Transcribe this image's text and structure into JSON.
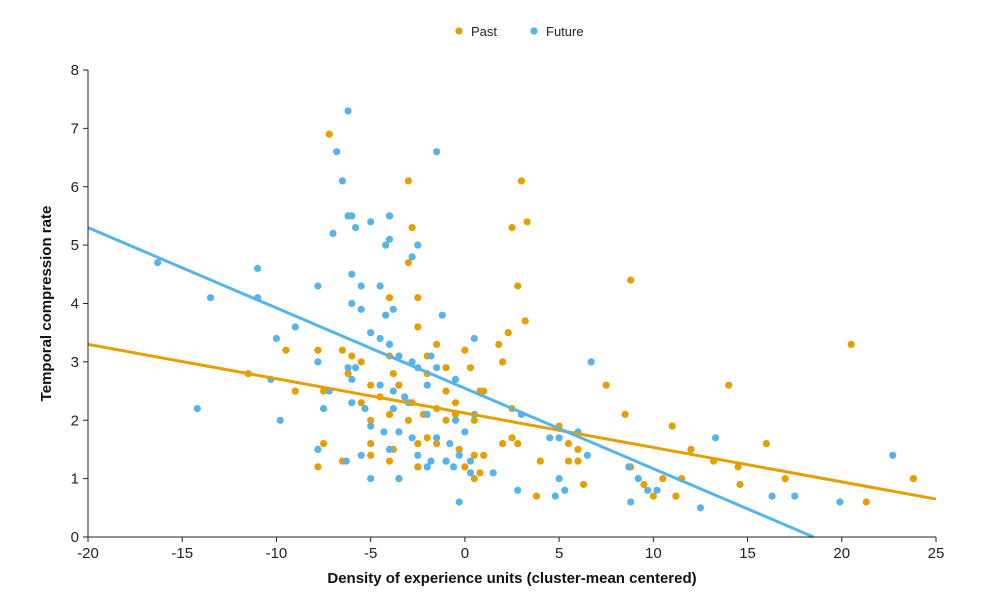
{
  "chart_data": {
    "type": "scatter",
    "title": "",
    "xlabel": "Density of experience units (cluster-mean centered)",
    "ylabel": "Temporal compression rate",
    "xlim": [
      -20,
      25
    ],
    "ylim": [
      0,
      8
    ],
    "xticks": [
      -20,
      -15,
      -10,
      -5,
      0,
      5,
      10,
      15,
      20,
      25
    ],
    "xtick_labels": [
      "-20",
      "-15",
      "-10",
      "-5",
      "0",
      "5",
      "10",
      "15",
      "20",
      "25"
    ],
    "yticks": [
      0,
      1,
      2,
      3,
      4,
      5,
      6,
      7,
      8
    ],
    "ytick_labels": [
      "0",
      "1",
      "2",
      "3",
      "4",
      "5",
      "6",
      "7",
      "8"
    ],
    "grid": false,
    "legend_position": "top-center",
    "series": [
      {
        "name": "Past",
        "color": "#E69F00",
        "trend": {
          "x": [
            -20,
            25
          ],
          "y": [
            3.3,
            0.65
          ]
        },
        "points": [
          [
            -7.2,
            6.9
          ],
          [
            -3.0,
            6.1
          ],
          [
            3.0,
            6.1
          ],
          [
            -4.0,
            5.5
          ],
          [
            3.3,
            5.4
          ],
          [
            2.5,
            5.3
          ],
          [
            -2.8,
            5.3
          ],
          [
            2.8,
            4.3
          ],
          [
            -3.0,
            4.7
          ],
          [
            -4.0,
            4.1
          ],
          [
            -2.5,
            4.1
          ],
          [
            8.8,
            4.4
          ],
          [
            -5.0,
            3.5
          ],
          [
            3.2,
            3.7
          ],
          [
            -2.5,
            3.6
          ],
          [
            2.3,
            3.5
          ],
          [
            -9.5,
            3.2
          ],
          [
            -7.8,
            3.2
          ],
          [
            -6.5,
            3.2
          ],
          [
            -6.0,
            3.1
          ],
          [
            -5.5,
            3.0
          ],
          [
            -4.0,
            3.1
          ],
          [
            -2.0,
            3.1
          ],
          [
            -1.5,
            3.3
          ],
          [
            0,
            3.2
          ],
          [
            1.8,
            3.3
          ],
          [
            -6.2,
            2.8
          ],
          [
            -3.8,
            2.8
          ],
          [
            -1.0,
            2.9
          ],
          [
            0.3,
            2.9
          ],
          [
            2.0,
            3.0
          ],
          [
            -11.5,
            2.8
          ],
          [
            -7.5,
            2.5
          ],
          [
            -5.0,
            2.6
          ],
          [
            -3.5,
            2.6
          ],
          [
            -2.0,
            2.8
          ],
          [
            -1.0,
            2.5
          ],
          [
            1.0,
            2.5
          ],
          [
            -5.5,
            2.3
          ],
          [
            -4.5,
            2.4
          ],
          [
            -2.8,
            2.3
          ],
          [
            -1.5,
            2.2
          ],
          [
            -0.5,
            2.3
          ],
          [
            0.8,
            2.5
          ],
          [
            2.5,
            2.2
          ],
          [
            7.5,
            2.6
          ],
          [
            14.0,
            2.6
          ],
          [
            20.5,
            3.3
          ],
          [
            -9.0,
            2.5
          ],
          [
            -5.0,
            2.0
          ],
          [
            -4.0,
            2.1
          ],
          [
            -3.0,
            2.0
          ],
          [
            -2.2,
            2.1
          ],
          [
            -1.0,
            2.0
          ],
          [
            -0.5,
            2.1
          ],
          [
            0.5,
            2.0
          ],
          [
            2.0,
            1.6
          ],
          [
            2.8,
            1.6
          ],
          [
            5.0,
            1.9
          ],
          [
            8.5,
            2.1
          ],
          [
            11.0,
            1.9
          ],
          [
            -7.5,
            1.6
          ],
          [
            -5.0,
            1.6
          ],
          [
            -3.8,
            1.5
          ],
          [
            -2.5,
            1.6
          ],
          [
            -2.0,
            1.7
          ],
          [
            -1.5,
            1.6
          ],
          [
            -0.3,
            1.5
          ],
          [
            0.5,
            1.4
          ],
          [
            1.0,
            1.4
          ],
          [
            2.5,
            1.7
          ],
          [
            5.5,
            1.6
          ],
          [
            6.0,
            1.5
          ],
          [
            12.0,
            1.5
          ],
          [
            16.0,
            1.6
          ],
          [
            -7.8,
            1.2
          ],
          [
            -6.5,
            1.3
          ],
          [
            -5.0,
            1.4
          ],
          [
            -4.0,
            1.3
          ],
          [
            -2.5,
            1.2
          ],
          [
            -1.0,
            1.3
          ],
          [
            0,
            1.2
          ],
          [
            0.8,
            1.1
          ],
          [
            4.0,
            1.3
          ],
          [
            5.5,
            1.3
          ],
          [
            6.0,
            1.3
          ],
          [
            8.8,
            1.2
          ],
          [
            10.5,
            1.0
          ],
          [
            11.5,
            1.0
          ],
          [
            13.2,
            1.3
          ],
          [
            14.5,
            1.2
          ],
          [
            -3.5,
            1.0
          ],
          [
            0.5,
            1.0
          ],
          [
            3.8,
            0.7
          ],
          [
            6.3,
            0.9
          ],
          [
            9.5,
            0.9
          ],
          [
            10.0,
            0.7
          ],
          [
            11.2,
            0.7
          ],
          [
            14.6,
            0.9
          ],
          [
            17.0,
            1.0
          ],
          [
            21.3,
            0.6
          ],
          [
            23.8,
            1.0
          ]
        ]
      },
      {
        "name": "Future",
        "color": "#56B4E9",
        "trend": {
          "x": [
            -20,
            18.5
          ],
          "y": [
            5.3,
            0
          ]
        },
        "points": [
          [
            -6.2,
            7.3
          ],
          [
            -6.8,
            6.6
          ],
          [
            -1.5,
            6.6
          ],
          [
            -6.5,
            6.1
          ],
          [
            -6.0,
            5.5
          ],
          [
            -6.2,
            5.5
          ],
          [
            -5.0,
            5.4
          ],
          [
            -4.0,
            5.5
          ],
          [
            -5.8,
            5.3
          ],
          [
            -7.0,
            5.2
          ],
          [
            -2.5,
            5.0
          ],
          [
            -4.0,
            5.1
          ],
          [
            -4.2,
            5.0
          ],
          [
            -2.8,
            4.8
          ],
          [
            -16.3,
            4.7
          ],
          [
            -11.0,
            4.6
          ],
          [
            -6.0,
            4.5
          ],
          [
            -5.5,
            4.3
          ],
          [
            -4.5,
            4.3
          ],
          [
            -7.8,
            4.3
          ],
          [
            -13.5,
            4.1
          ],
          [
            -11.0,
            4.1
          ],
          [
            -6.0,
            4.0
          ],
          [
            -5.5,
            3.9
          ],
          [
            -4.2,
            3.8
          ],
          [
            -3.8,
            3.9
          ],
          [
            -1.2,
            3.8
          ],
          [
            -9.0,
            3.6
          ],
          [
            -5.0,
            3.5
          ],
          [
            -4.5,
            3.4
          ],
          [
            -4.0,
            3.3
          ],
          [
            0.5,
            3.4
          ],
          [
            -10.0,
            3.4
          ],
          [
            -7.8,
            3.0
          ],
          [
            -6.2,
            2.9
          ],
          [
            -5.8,
            2.9
          ],
          [
            -3.5,
            3.1
          ],
          [
            -2.8,
            3.0
          ],
          [
            -1.8,
            3.1
          ],
          [
            -2.5,
            2.9
          ],
          [
            -1.5,
            2.9
          ],
          [
            -0.5,
            2.7
          ],
          [
            -6.0,
            2.7
          ],
          [
            -7.2,
            2.5
          ],
          [
            -4.5,
            2.6
          ],
          [
            -3.8,
            2.5
          ],
          [
            -3.2,
            2.4
          ],
          [
            -2.0,
            2.6
          ],
          [
            -10.3,
            2.7
          ],
          [
            -14.2,
            2.2
          ],
          [
            -9.8,
            2.0
          ],
          [
            -7.5,
            2.2
          ],
          [
            -6.0,
            2.3
          ],
          [
            -5.3,
            2.2
          ],
          [
            -3.8,
            2.2
          ],
          [
            -3.0,
            2.3
          ],
          [
            -2.0,
            2.1
          ],
          [
            -0.5,
            2.0
          ],
          [
            0.5,
            2.1
          ],
          [
            -5.0,
            1.9
          ],
          [
            -4.3,
            1.8
          ],
          [
            -3.5,
            1.8
          ],
          [
            -2.8,
            1.7
          ],
          [
            -1.5,
            1.7
          ],
          [
            -0.8,
            1.6
          ],
          [
            0,
            1.8
          ],
          [
            -7.8,
            1.5
          ],
          [
            -6.3,
            1.3
          ],
          [
            -5.5,
            1.4
          ],
          [
            -4.0,
            1.5
          ],
          [
            -2.5,
            1.4
          ],
          [
            -1.8,
            1.3
          ],
          [
            -1.0,
            1.3
          ],
          [
            -0.3,
            1.4
          ],
          [
            0.3,
            1.3
          ],
          [
            1.5,
            1.1
          ],
          [
            -5.0,
            1.0
          ],
          [
            -3.5,
            1.0
          ],
          [
            -2.0,
            1.2
          ],
          [
            -0.6,
            1.2
          ],
          [
            0.3,
            1.1
          ],
          [
            3.0,
            2.1
          ],
          [
            4.5,
            1.7
          ],
          [
            5.0,
            1.7
          ],
          [
            6.0,
            1.8
          ],
          [
            6.5,
            1.4
          ],
          [
            6.7,
            3.0
          ],
          [
            5.0,
            1.0
          ],
          [
            4.8,
            0.7
          ],
          [
            5.3,
            0.8
          ],
          [
            2.8,
            0.8
          ],
          [
            -0.3,
            0.6
          ],
          [
            8.7,
            1.2
          ],
          [
            9.2,
            1.0
          ],
          [
            8.8,
            0.6
          ],
          [
            9.7,
            0.8
          ],
          [
            10.2,
            0.8
          ],
          [
            12.5,
            0.5
          ],
          [
            13.3,
            1.7
          ],
          [
            16.3,
            0.7
          ],
          [
            17.5,
            0.7
          ],
          [
            19.9,
            0.6
          ],
          [
            22.7,
            1.4
          ]
        ]
      }
    ]
  }
}
